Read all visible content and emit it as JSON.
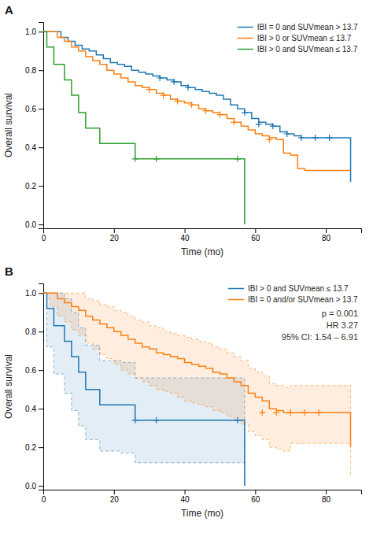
{
  "chart_data": [
    {
      "type": "step",
      "title": "A",
      "xlabel": "Time (mo)",
      "ylabel": "Overall survival",
      "xlim": [
        0,
        90
      ],
      "ylim": [
        -0.02,
        1.05
      ],
      "xticks": [
        0,
        20,
        40,
        60,
        80
      ],
      "yticks": [
        {
          "value": 0.0,
          "label": "0.0"
        },
        0.2,
        0.4,
        0.6,
        0.8,
        {
          "value": 1.0,
          "label": "1.0"
        }
      ],
      "grid": false,
      "legend": "upper right",
      "series": [
        {
          "name": "IBI = 0 and SUVmean > 13.7",
          "x": [
            0,
            1,
            3,
            5,
            7,
            9,
            11,
            13,
            15,
            17,
            19,
            21,
            23,
            25,
            27,
            29,
            31,
            33,
            35,
            37,
            39,
            41,
            43,
            45,
            47,
            49,
            51,
            53,
            55,
            57,
            59,
            61,
            63,
            65,
            67,
            69,
            71,
            73,
            75,
            77,
            79,
            81,
            83,
            85,
            87
          ],
          "values": [
            1.0,
            1.0,
            1.0,
            0.97,
            0.95,
            0.93,
            0.91,
            0.9,
            0.88,
            0.86,
            0.84,
            0.83,
            0.82,
            0.8,
            0.79,
            0.78,
            0.77,
            0.76,
            0.75,
            0.74,
            0.72,
            0.71,
            0.7,
            0.69,
            0.68,
            0.67,
            0.65,
            0.62,
            0.6,
            0.58,
            0.55,
            0.53,
            0.52,
            0.51,
            0.48,
            0.47,
            0.46,
            0.45,
            0.45,
            0.45,
            0.45,
            0.45,
            0.45,
            0.45,
            0.22
          ],
          "censor_x": [
            33,
            37,
            41,
            57,
            61,
            65,
            69,
            73,
            77,
            81
          ],
          "censor_values": [
            0.76,
            0.74,
            0.71,
            0.58,
            0.52,
            0.51,
            0.47,
            0.45,
            0.45,
            0.45
          ]
        },
        {
          "name": "IBI > 0 or SUVmean ≤ 13.7",
          "x": [
            0,
            1,
            2,
            4,
            6,
            8,
            10,
            12,
            14,
            16,
            18,
            20,
            22,
            24,
            26,
            28,
            30,
            32,
            34,
            36,
            38,
            40,
            42,
            44,
            46,
            48,
            50,
            52,
            54,
            56,
            58,
            60,
            62,
            64,
            66,
            68,
            70,
            72,
            74,
            76,
            78,
            87
          ],
          "values": [
            1.0,
            1.0,
            1.0,
            0.97,
            0.95,
            0.92,
            0.9,
            0.87,
            0.85,
            0.83,
            0.8,
            0.78,
            0.76,
            0.74,
            0.72,
            0.71,
            0.7,
            0.68,
            0.67,
            0.65,
            0.64,
            0.63,
            0.62,
            0.6,
            0.59,
            0.58,
            0.57,
            0.55,
            0.53,
            0.51,
            0.49,
            0.47,
            0.46,
            0.45,
            0.44,
            0.37,
            0.36,
            0.29,
            0.28,
            0.28,
            0.28,
            0.28
          ],
          "censor_x": [
            30,
            34,
            38,
            42,
            46,
            50,
            54,
            64
          ],
          "censor_values": [
            0.7,
            0.67,
            0.64,
            0.62,
            0.59,
            0.57,
            0.53,
            0.44
          ]
        },
        {
          "name": "IBI > 0 and SUVmean ≤ 13.7",
          "x": [
            0,
            1,
            3,
            6,
            8,
            10,
            12,
            14,
            16,
            18,
            20,
            22,
            24,
            26,
            28,
            30,
            32,
            57
          ],
          "values": [
            1.0,
            0.92,
            0.83,
            0.75,
            0.67,
            0.58,
            0.5,
            0.5,
            0.42,
            0.42,
            0.42,
            0.42,
            0.42,
            0.34,
            0.34,
            0.34,
            0.34,
            0.0
          ],
          "censor_x": [
            26,
            32,
            55
          ],
          "censor_values": [
            0.34,
            0.34,
            0.34
          ]
        }
      ]
    },
    {
      "type": "step",
      "title": "B",
      "xlabel": "Time (mo)",
      "ylabel": "Overall survival",
      "xlim": [
        0,
        90
      ],
      "ylim": [
        -0.02,
        1.05
      ],
      "xticks": [
        0,
        20,
        40,
        60,
        80
      ],
      "yticks": [
        {
          "value": 0.0,
          "label": "0.0"
        },
        0.2,
        0.4,
        0.6,
        0.8,
        {
          "value": 1.0,
          "label": "1.0"
        }
      ],
      "grid": false,
      "legend": "upper right",
      "annotations": [
        "p = 0.001",
        "HR 3.27",
        "95% CI: 1.54 – 6.91"
      ],
      "series": [
        {
          "name": "IBI > 0 and SUVmean ≤ 13.7",
          "x": [
            0,
            1,
            3,
            6,
            8,
            10,
            12,
            14,
            16,
            18,
            20,
            22,
            24,
            26,
            28,
            30,
            32,
            57
          ],
          "values": [
            1.0,
            0.92,
            0.83,
            0.75,
            0.67,
            0.59,
            0.5,
            0.5,
            0.42,
            0.42,
            0.42,
            0.42,
            0.42,
            0.34,
            0.34,
            0.34,
            0.34,
            0.0
          ],
          "ci_upper": [
            1.0,
            1.0,
            1.0,
            0.97,
            0.9,
            0.82,
            0.73,
            0.73,
            0.65,
            0.65,
            0.65,
            0.64,
            0.64,
            0.56,
            0.56,
            0.56,
            0.56,
            0.1
          ],
          "ci_lower": [
            1.0,
            0.72,
            0.58,
            0.48,
            0.39,
            0.31,
            0.24,
            0.24,
            0.18,
            0.18,
            0.18,
            0.17,
            0.17,
            0.12,
            0.12,
            0.12,
            0.12,
            0.0
          ],
          "censor_x": [
            26,
            32,
            55
          ],
          "censor_values": [
            0.34,
            0.34,
            0.34
          ]
        },
        {
          "name": "IBI = 0 and/or SUVmean > 13.7",
          "x": [
            0,
            1,
            2,
            4,
            6,
            8,
            10,
            12,
            14,
            16,
            18,
            20,
            22,
            24,
            26,
            28,
            30,
            32,
            34,
            36,
            38,
            40,
            42,
            44,
            46,
            48,
            50,
            52,
            54,
            56,
            58,
            60,
            62,
            64,
            66,
            68,
            70,
            72,
            74,
            76,
            78,
            87
          ],
          "values": [
            1.0,
            1.0,
            1.0,
            0.97,
            0.95,
            0.93,
            0.91,
            0.88,
            0.86,
            0.84,
            0.82,
            0.8,
            0.78,
            0.76,
            0.74,
            0.72,
            0.71,
            0.69,
            0.68,
            0.67,
            0.66,
            0.64,
            0.63,
            0.62,
            0.61,
            0.59,
            0.58,
            0.56,
            0.54,
            0.52,
            0.48,
            0.46,
            0.44,
            0.4,
            0.39,
            0.38,
            0.38,
            0.38,
            0.38,
            0.38,
            0.38,
            0.2
          ],
          "ci_upper": [
            1.0,
            1.0,
            1.0,
            1.0,
            1.0,
            1.0,
            1.0,
            0.97,
            0.96,
            0.94,
            0.93,
            0.91,
            0.9,
            0.88,
            0.86,
            0.85,
            0.83,
            0.82,
            0.8,
            0.79,
            0.78,
            0.77,
            0.76,
            0.75,
            0.74,
            0.72,
            0.71,
            0.69,
            0.67,
            0.65,
            0.61,
            0.59,
            0.57,
            0.53,
            0.52,
            0.51,
            0.52,
            0.52,
            0.52,
            0.52,
            0.52,
            0.38
          ],
          "ci_lower": [
            1.0,
            0.97,
            0.93,
            0.88,
            0.85,
            0.81,
            0.78,
            0.74,
            0.71,
            0.68,
            0.66,
            0.63,
            0.6,
            0.58,
            0.56,
            0.54,
            0.52,
            0.5,
            0.49,
            0.48,
            0.46,
            0.44,
            0.43,
            0.42,
            0.41,
            0.39,
            0.38,
            0.36,
            0.34,
            0.32,
            0.28,
            0.26,
            0.24,
            0.2,
            0.19,
            0.18,
            0.22,
            0.22,
            0.22,
            0.22,
            0.22,
            0.05
          ],
          "censor_x": [
            62,
            66,
            70,
            74,
            78
          ],
          "censor_values": [
            0.38,
            0.38,
            0.38,
            0.38,
            0.38
          ]
        }
      ]
    }
  ]
}
